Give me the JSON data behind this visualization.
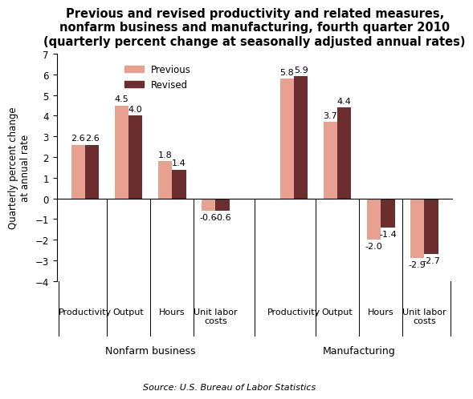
{
  "title": "Previous and revised productivity and related measures,\nnonfarm business and manufacturing, fourth quarter 2010\n(quarterly percent change at seasonally adjusted annual rates)",
  "ylabel": "Quarterly percent change\nat annual rate",
  "source": "Source: U.S. Bureau of Labor Statistics",
  "legend_labels": [
    "Previous",
    "Revised"
  ],
  "bar_color_previous": "#E8A090",
  "bar_color_revised": "#6B2D2D",
  "groups": [
    {
      "section": "Nonfarm business",
      "categories": [
        "Productivity",
        "Output",
        "Hours",
        "Unit labor\ncosts"
      ],
      "previous": [
        2.6,
        4.5,
        1.8,
        -0.6
      ],
      "revised": [
        2.6,
        4.0,
        1.4,
        -0.6
      ]
    },
    {
      "section": "Manufacturing",
      "categories": [
        "Productivity",
        "Output",
        "Hours",
        "Unit labor\ncosts"
      ],
      "previous": [
        5.8,
        3.7,
        -2.0,
        -2.9
      ],
      "revised": [
        5.9,
        4.4,
        -1.4,
        -2.7
      ]
    }
  ],
  "ylim": [
    -4,
    7
  ],
  "yticks": [
    -4,
    -3,
    -2,
    -1,
    0,
    1,
    2,
    3,
    4,
    5,
    6,
    7
  ],
  "bar_width": 0.32,
  "title_fontsize": 10.5,
  "axis_label_fontsize": 8.5,
  "tick_fontsize": 8.5,
  "value_label_fontsize": 8,
  "section_label_fontsize": 9,
  "source_fontsize": 8,
  "legend_fontsize": 8.5
}
